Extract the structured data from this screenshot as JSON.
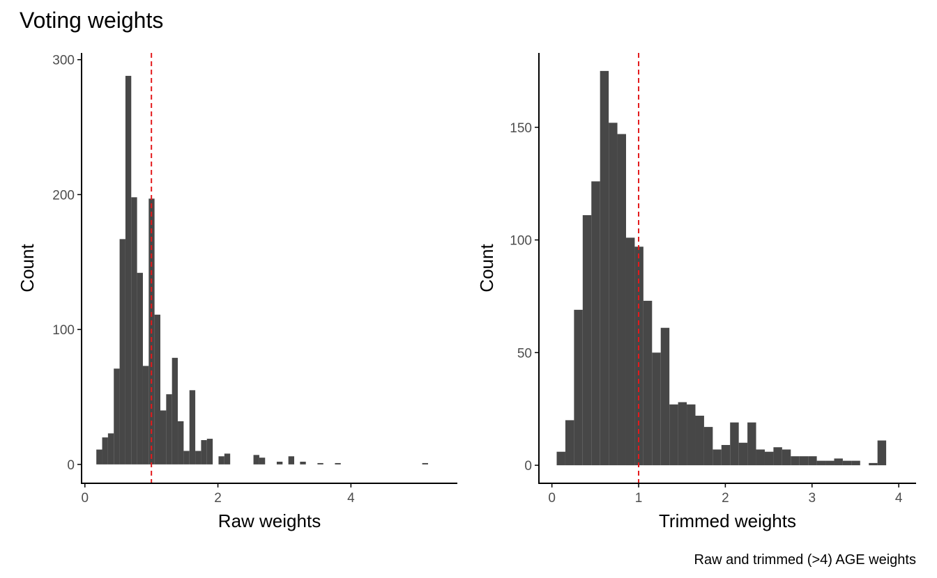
{
  "title": "Voting weights",
  "caption": "Raw and trimmed (>4) AGE weights",
  "colors": {
    "bar": "#474747",
    "refline": "#e31a1c",
    "axis": "#000000",
    "tick_text": "#4d4d4d"
  },
  "chart_data": [
    {
      "type": "bar",
      "subtype": "histogram",
      "xlabel": "Raw weights",
      "ylabel": "Count",
      "xlim": [
        -0.05,
        5.6
      ],
      "ylim": [
        -14,
        305
      ],
      "xticks": [
        0,
        2,
        4
      ],
      "yticks": [
        0,
        100,
        200,
        300
      ],
      "grid": false,
      "legend": "none",
      "reference_line": {
        "x": 1.0,
        "style": "dashed"
      },
      "bins": {
        "start": 0.172,
        "width": 0.0875,
        "counts": [
          11,
          20,
          23,
          71,
          167,
          288,
          198,
          142,
          73,
          197,
          111,
          40,
          52,
          79,
          32,
          10,
          55,
          10,
          18,
          19,
          0,
          6,
          8,
          0,
          0,
          0,
          0,
          7,
          5,
          0,
          0,
          2,
          0,
          6,
          0,
          2,
          0,
          0,
          1,
          0,
          0,
          1,
          0,
          0,
          0,
          0,
          0,
          0,
          0,
          0,
          0,
          0,
          0,
          0,
          0,
          0,
          1
        ]
      }
    },
    {
      "type": "bar",
      "subtype": "histogram",
      "xlabel": "Trimmed weights",
      "ylabel": "Count",
      "xlim": [
        -0.15,
        4.2
      ],
      "ylim": [
        -8,
        183
      ],
      "xticks": [
        0,
        1,
        2,
        3,
        4
      ],
      "yticks": [
        0,
        50,
        100,
        150
      ],
      "grid": false,
      "legend": "none",
      "reference_line": {
        "x": 1.0,
        "style": "dashed"
      },
      "bins": {
        "start": 0.055,
        "width": 0.1,
        "counts": [
          6,
          20,
          69,
          111,
          126,
          175,
          152,
          147,
          101,
          97,
          73,
          50,
          61,
          27,
          28,
          27,
          22,
          17,
          7,
          9,
          19,
          10,
          19,
          7,
          6,
          8,
          7,
          4,
          4,
          4,
          2,
          2,
          3,
          2,
          2,
          0,
          1,
          11
        ]
      }
    }
  ]
}
